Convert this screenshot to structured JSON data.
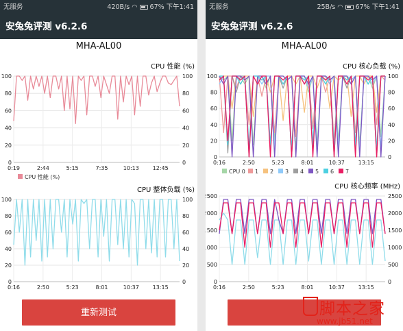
{
  "left": {
    "status": {
      "carrier": "无服务",
      "speed": "420B/s",
      "battery": "67%",
      "time": "下午1:41"
    },
    "app_title": "安兔兔评测 v6.2.6",
    "device": "MHA-AL00",
    "charts": [
      {
        "id": "l1",
        "type": "line",
        "title": "CPU 性能 (%)",
        "top": 87,
        "height": 184,
        "x_ticks": [
          "0:19",
          "2:44",
          "5:15",
          "7:35",
          "10:13",
          "12:45"
        ],
        "y_left": [
          0,
          20,
          40,
          60,
          80,
          100
        ],
        "y_right": [
          0,
          20,
          40,
          60,
          80,
          100
        ],
        "ylim": [
          0,
          100
        ],
        "legend": [
          "CPU 性能 (%)"
        ],
        "series": [
          {
            "name": "CPU 性能 (%)",
            "color": "#e88a98",
            "values": [
              48,
              100,
              100,
              95,
              100,
              72,
              100,
              85,
              100,
              88,
              100,
              80,
              100,
              75,
              100,
              100,
              85,
              100,
              60,
              100,
              62,
              100,
              45,
              100,
              95,
              100,
              55,
              100,
              100,
              88,
              100,
              75,
              100,
              90,
              80,
              100,
              100,
              50,
              100,
              70,
              100,
              90,
              100,
              55,
              100,
              65,
              100,
              100,
              78,
              92,
              100,
              82,
              92,
              100,
              100,
              92,
              90,
              95,
              100,
              65
            ]
          }
        ]
      },
      {
        "id": "l2",
        "type": "line",
        "title": "CPU 整体负载 (%)",
        "top": 267,
        "height": 166,
        "x_ticks": [
          "0:16",
          "2:50",
          "5:23",
          "8:01",
          "10:37",
          "13:15"
        ],
        "y_left": [
          0,
          20,
          40,
          60,
          80,
          100
        ],
        "y_right": [
          0,
          20,
          40,
          60,
          80,
          100
        ],
        "ylim": [
          0,
          100
        ],
        "legend": [],
        "series": [
          {
            "name": "",
            "color": "#8fdcea",
            "values": [
              45,
              100,
              60,
              100,
              20,
              100,
              30,
              100,
              50,
              100,
              25,
              100,
              30,
              100,
              40,
              100,
              100,
              60,
              100,
              30,
              100,
              70,
              100,
              25,
              100,
              95,
              100,
              40,
              100,
              100,
              30,
              100,
              55,
              100,
              25,
              100,
              100,
              45,
              100,
              40,
              100,
              30,
              100,
              95,
              20,
              100,
              100,
              40,
              100,
              35,
              100,
              30,
              100,
              100,
              30,
              100,
              100,
              40,
              100,
              25
            ]
          }
        ]
      }
    ],
    "button": "重新测试"
  },
  "right": {
    "status": {
      "carrier": "无服务",
      "speed": "25B/s",
      "battery": "67%",
      "time": "下午1:41"
    },
    "app_title": "安兔兔评测 v6.2.6",
    "device": "MHA-AL00",
    "charts": [
      {
        "id": "r1",
        "type": "line",
        "title": "CPU 核心负载 (%)",
        "top": 87,
        "height": 176,
        "x_ticks": [
          "0:16",
          "2:50",
          "5:23",
          "8:01",
          "10:37",
          "13:15"
        ],
        "y_left": [
          0,
          20,
          40,
          60,
          80,
          100
        ],
        "y_right": [
          0,
          20,
          40,
          60,
          80,
          100
        ],
        "ylim": [
          0,
          100
        ],
        "legend": [
          "CPU 0",
          "1",
          "2",
          "3",
          "4",
          "5",
          "6",
          "7"
        ],
        "series": [
          {
            "name": "CPU 0",
            "color": "#a5d6a7",
            "values": [
              100,
              95,
              100,
              20,
              100,
              100,
              90,
              100,
              15,
              100,
              100,
              85,
              100,
              20,
              100,
              100,
              95,
              100,
              10,
              100,
              100,
              80,
              100,
              15,
              100,
              100,
              95,
              100,
              20,
              100,
              100,
              90,
              100,
              15,
              100,
              100,
              85,
              100,
              25,
              100
            ]
          },
          {
            "name": "1",
            "color": "#ef9a9a",
            "values": [
              100,
              30,
              100,
              100,
              85,
              100,
              95,
              40,
              100,
              100,
              75,
              100,
              100,
              30,
              100,
              90,
              100,
              100,
              25,
              100,
              95,
              100,
              35,
              100,
              100,
              80,
              100,
              20,
              100,
              100,
              95,
              100,
              30,
              100,
              90,
              100,
              100,
              40,
              100,
              95
            ]
          },
          {
            "name": "2",
            "color": "#f6c27e",
            "values": [
              95,
              100,
              100,
              60,
              100,
              90,
              100,
              100,
              50,
              100,
              95,
              100,
              80,
              100,
              100,
              45,
              100,
              100,
              90,
              100,
              55,
              100,
              100,
              85,
              100,
              100,
              60,
              100,
              95,
              100,
              100,
              50,
              100,
              100,
              90,
              100,
              100,
              55,
              100,
              100
            ]
          },
          {
            "name": "3",
            "color": "#90caf9",
            "values": [
              90,
              100,
              10,
              100,
              100,
              95,
              100,
              5,
              100,
              100,
              90,
              100,
              100,
              10,
              100,
              95,
              100,
              0,
              100,
              100,
              100,
              85,
              100,
              5,
              100,
              100,
              90,
              100,
              10,
              100,
              100,
              95,
              100,
              5,
              100,
              100,
              90,
              100,
              10,
              100
            ]
          },
          {
            "name": "4",
            "color": "#9e9e9e",
            "values": [
              100,
              100,
              5,
              100,
              80,
              100,
              100,
              0,
              100,
              90,
              100,
              100,
              10,
              100,
              100,
              85,
              100,
              0,
              100,
              100,
              90,
              100,
              5,
              100,
              100,
              95,
              100,
              0,
              100,
              100,
              85,
              100,
              5,
              100,
              100,
              90,
              100,
              0,
              100,
              100
            ]
          },
          {
            "name": "5",
            "color": "#7e57c2",
            "values": [
              100,
              90,
              100,
              0,
              100,
              100,
              95,
              100,
              0,
              100,
              100,
              90,
              100,
              0,
              100,
              100,
              95,
              100,
              0,
              100,
              100,
              90,
              100,
              0,
              100,
              100,
              95,
              100,
              0,
              100,
              100,
              90,
              100,
              0,
              100,
              100,
              95,
              100,
              0,
              100
            ]
          },
          {
            "name": "6",
            "color": "#4dd0e1",
            "values": [
              100,
              100,
              15,
              100,
              100,
              90,
              100,
              10,
              100,
              100,
              95,
              100,
              15,
              100,
              100,
              90,
              100,
              10,
              100,
              100,
              95,
              100,
              15,
              100,
              100,
              90,
              100,
              10,
              100,
              100,
              95,
              100,
              15,
              100,
              100,
              90,
              100,
              10,
              100,
              100
            ]
          },
          {
            "name": "7",
            "color": "#e91e63",
            "values": [
              95,
              100,
              20,
              100,
              100,
              95,
              100,
              0,
              100,
              90,
              100,
              100,
              0,
              100,
              100,
              95,
              100,
              0,
              100,
              100,
              90,
              100,
              0,
              100,
              100,
              95,
              100,
              0,
              100,
              100,
              90,
              100,
              0,
              100,
              100,
              95,
              100,
              0,
              100,
              100
            ]
          }
        ]
      },
      {
        "id": "r2",
        "type": "line",
        "title": "CPU 核心频率 (MHz)",
        "top": 262,
        "height": 171,
        "x_ticks": [
          "0:16",
          "2:50",
          "5:23",
          "8:01",
          "10:37",
          "13:15"
        ],
        "y_left": [
          0,
          500,
          1000,
          1500,
          2000,
          2500
        ],
        "y_right": [
          0,
          500,
          1000,
          1500,
          2000,
          2500
        ],
        "ylim": [
          0,
          2500
        ],
        "legend": [],
        "series": [
          {
            "name": "",
            "color": "#8fdcea",
            "values": [
              1800,
              2000,
              1800,
              500,
              1800,
              1800,
              500,
              1800,
              1800,
              700,
              1800,
              1800,
              500,
              1800,
              1800,
              500,
              1800,
              1800,
              500,
              1800,
              1800,
              600,
              1800,
              1800,
              500,
              1800,
              1800,
              500,
              1800,
              1800,
              500,
              1800,
              1800,
              500,
              1800,
              1800,
              500,
              1800,
              1800,
              600
            ]
          },
          {
            "name": "",
            "color": "#7e57c2",
            "values": [
              1400,
              2400,
              2400,
              1400,
              2400,
              2400,
              1400,
              2400,
              2400,
              1400,
              2400,
              2400,
              1400,
              2400,
              1800,
              1400,
              2400,
              2400,
              1400,
              2400,
              2400,
              1400,
              2400,
              2400,
              1400,
              2400,
              2400,
              1400,
              2400,
              2400,
              1400,
              2400,
              2400,
              1400,
              2400,
              2400,
              1400,
              2400,
              2400,
              1400
            ]
          },
          {
            "name": "",
            "color": "#e91e63",
            "values": [
              1500,
              2300,
              2300,
              1400,
              2300,
              2300,
              1000,
              2300,
              2300,
              1400,
              2300,
              2300,
              1000,
              2300,
              2300,
              1400,
              2300,
              2300,
              1000,
              2300,
              2300,
              1400,
              2300,
              2300,
              1000,
              2300,
              2300,
              1400,
              2300,
              2300,
              1000,
              2300,
              2300,
              1400,
              2300,
              2300,
              1000,
              2300,
              2300,
              1400
            ]
          }
        ]
      }
    ],
    "button": ""
  },
  "watermark": {
    "logo": "脚本之家",
    "url": "www.jb51.net"
  }
}
